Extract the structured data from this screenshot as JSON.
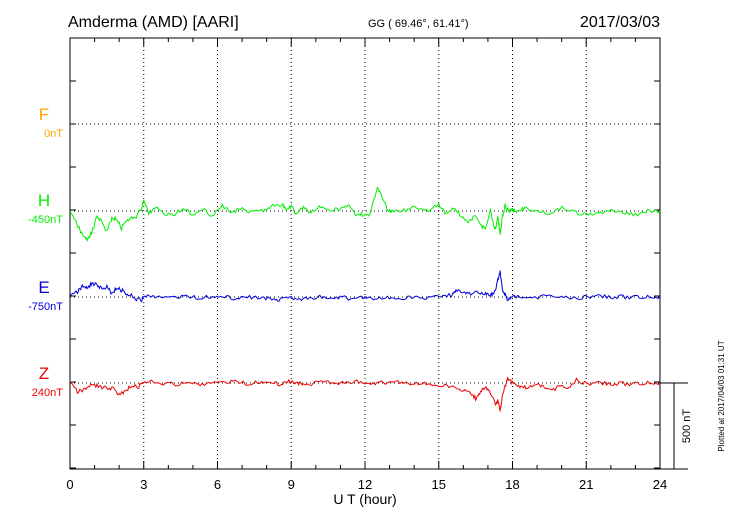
{
  "header": {
    "station": "Amderma (AMD)  [AARI]",
    "coords": "GG ( 69.46°,  61.41°)",
    "date": "2017/03/03"
  },
  "footer": {
    "plotted": "Plotted at 2017/04/03 01:31  UT",
    "scale_label": "500 nT"
  },
  "colors": {
    "F": "#ffa500",
    "H": "#00ee00",
    "E": "#0000dd",
    "Z": "#ee0000"
  },
  "chart_data": {
    "type": "line",
    "xlabel": "U T (hour)",
    "xlim": [
      0,
      24
    ],
    "xticks": [
      "0",
      "3",
      "6",
      "9",
      "12",
      "15",
      "18",
      "21",
      "24"
    ],
    "scale_nT": 500,
    "series": [
      {
        "name": "F",
        "baseline_label": "0nT",
        "x": [],
        "y": []
      },
      {
        "name": "H",
        "baseline_label": "-450nT",
        "x": [
          0,
          0.3,
          0.5,
          0.7,
          0.9,
          1.1,
          1.3,
          1.5,
          1.7,
          1.9,
          2.1,
          2.3,
          2.5,
          2.7,
          2.9,
          3.0,
          3.2,
          3.5,
          3.8,
          4.2,
          4.6,
          5.0,
          5.4,
          5.8,
          6.2,
          6.6,
          7.0,
          7.4,
          7.8,
          8.2,
          8.6,
          8.8,
          9.0,
          9.2,
          9.5,
          9.8,
          10.2,
          10.6,
          11.0,
          11.3,
          11.6,
          11.9,
          12.2,
          12.5,
          12.7,
          12.9,
          13.1,
          13.5,
          14.0,
          14.5,
          15.0,
          15.3,
          15.6,
          15.9,
          16.2,
          16.5,
          16.7,
          16.9,
          17.1,
          17.2,
          17.3,
          17.4,
          17.5,
          17.6,
          17.7,
          17.8,
          17.9,
          18.0,
          18.2,
          18.5,
          19.0,
          19.5,
          20.0,
          20.5,
          21.0,
          21.5,
          22.0,
          22.5,
          23.0,
          23.5,
          24.0
        ],
        "y": [
          -10,
          -80,
          -140,
          -170,
          -120,
          -30,
          -60,
          -120,
          -40,
          -50,
          -100,
          -50,
          -40,
          -30,
          10,
          60,
          -10,
          20,
          -10,
          -30,
          20,
          -20,
          10,
          -30,
          30,
          -10,
          20,
          -10,
          0,
          30,
          40,
          10,
          30,
          -20,
          20,
          -10,
          30,
          10,
          10,
          40,
          -20,
          -20,
          -20,
          130,
          80,
          10,
          0,
          0,
          20,
          0,
          40,
          -20,
          20,
          -30,
          -70,
          -20,
          -80,
          -110,
          10,
          -60,
          -110,
          -40,
          -130,
          -30,
          30,
          10,
          0,
          10,
          0,
          20,
          0,
          -20,
          20,
          -10,
          -20,
          -10,
          0,
          -10,
          -20,
          0,
          0
        ]
      },
      {
        "name": "E",
        "baseline_label": "-750nT",
        "x": [
          0,
          0.3,
          0.5,
          0.7,
          0.9,
          1.1,
          1.3,
          1.5,
          1.7,
          1.9,
          2.1,
          2.3,
          2.5,
          2.7,
          2.9,
          3.0,
          3.3,
          3.8,
          4.3,
          4.8,
          5.3,
          5.8,
          6.3,
          6.8,
          7.3,
          7.8,
          8.3,
          8.6,
          9.0,
          9.5,
          10.0,
          10.5,
          11.0,
          11.5,
          12.0,
          12.5,
          13.0,
          13.5,
          14.0,
          14.5,
          15.0,
          15.5,
          15.7,
          16.0,
          16.3,
          16.6,
          16.9,
          17.1,
          17.3,
          17.4,
          17.5,
          17.6,
          17.7,
          17.8,
          18.0,
          18.3,
          18.8,
          19.5,
          20.0,
          20.5,
          21.0,
          21.5,
          22.0,
          22.5,
          23.0,
          23.5,
          24.0
        ],
        "y": [
          0,
          30,
          60,
          50,
          80,
          70,
          50,
          60,
          20,
          50,
          40,
          20,
          10,
          -10,
          -20,
          0,
          10,
          -5,
          5,
          0,
          -5,
          5,
          0,
          -10,
          0,
          -5,
          -10,
          -15,
          -5,
          -10,
          0,
          -5,
          0,
          -10,
          -5,
          -10,
          0,
          -5,
          0,
          -5,
          5,
          10,
          40,
          20,
          15,
          30,
          20,
          10,
          30,
          100,
          150,
          30,
          20,
          -20,
          0,
          5,
          -5,
          5,
          0,
          -5,
          0,
          5,
          0,
          0,
          0,
          0,
          0
        ]
      },
      {
        "name": "Z",
        "baseline_label": "240nT",
        "x": [
          0,
          0.3,
          0.6,
          0.9,
          1.2,
          1.5,
          1.8,
          2.0,
          2.2,
          2.5,
          2.8,
          3.0,
          3.3,
          3.8,
          4.3,
          4.8,
          5.3,
          5.8,
          6.3,
          6.8,
          7.3,
          7.8,
          8.3,
          8.6,
          8.9,
          9.2,
          9.5,
          10.0,
          10.5,
          11.0,
          11.5,
          12.0,
          12.5,
          13.0,
          13.5,
          14.0,
          14.5,
          15.0,
          15.5,
          16.0,
          16.3,
          16.5,
          16.7,
          16.9,
          17.1,
          17.3,
          17.4,
          17.5,
          17.6,
          17.7,
          17.8,
          18.0,
          18.3,
          18.6,
          19.0,
          19.3,
          19.6,
          20.0,
          20.3,
          20.6,
          21.0,
          21.5,
          22.0,
          22.5,
          23.0,
          23.5,
          24.0
        ],
        "y": [
          0,
          -50,
          -40,
          -10,
          -20,
          -30,
          -30,
          -70,
          -50,
          -20,
          -20,
          10,
          10,
          0,
          -10,
          0,
          -5,
          0,
          10,
          5,
          -5,
          10,
          0,
          -10,
          10,
          0,
          -5,
          0,
          5,
          0,
          10,
          0,
          0,
          5,
          0,
          -5,
          0,
          -10,
          -20,
          -40,
          -60,
          -90,
          -50,
          -30,
          -60,
          -120,
          -100,
          -160,
          -70,
          -20,
          30,
          0,
          -20,
          -30,
          -10,
          -20,
          -40,
          -20,
          -30,
          20,
          -5,
          0,
          -5,
          -5,
          -5,
          0,
          0
        ]
      }
    ]
  }
}
